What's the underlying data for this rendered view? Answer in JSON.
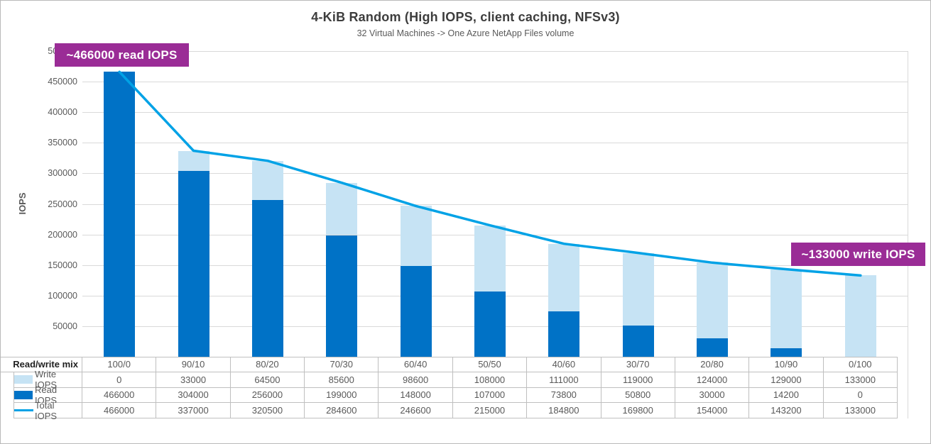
{
  "chart": {
    "title": "4-KiB Random (High IOPS, client caching, NFSv3)",
    "subtitle": "32 Virtual Machines -> One Azure NetApp Files volume",
    "y_axis_title": "IOPS",
    "annotations": [
      {
        "id": "read-peak",
        "text": "~466000 read IOPS"
      },
      {
        "id": "write-peak",
        "text": "~133000 write IOPS"
      }
    ]
  },
  "chart_data": {
    "type": "stacked-bar-with-line",
    "title": "4-KiB Random (High IOPS, client caching, NFSv3)",
    "subtitle": "32 Virtual Machines -> One Azure NetApp Files volume",
    "xlabel": "Read/write mix",
    "ylabel": "IOPS",
    "ylim": [
      0,
      500000
    ],
    "y_ticks": [
      50000,
      100000,
      150000,
      200000,
      250000,
      300000,
      350000,
      400000,
      450000,
      500000
    ],
    "grid": true,
    "legend_position": "table-rows",
    "categories": [
      "100/0",
      "90/10",
      "80/20",
      "70/30",
      "60/40",
      "50/50",
      "40/60",
      "30/70",
      "20/80",
      "10/90",
      "0/100"
    ],
    "series": [
      {
        "name": "Write IOPS",
        "role": "write",
        "render": "bar-stack-top",
        "color": "#c6e3f4",
        "values": [
          0,
          33000,
          64500,
          85600,
          98600,
          108000,
          111000,
          119000,
          124000,
          129000,
          133000
        ]
      },
      {
        "name": "Read IOPS",
        "role": "read",
        "render": "bar-stack-bottom",
        "color": "#0072c6",
        "values": [
          466000,
          304000,
          256000,
          199000,
          148000,
          107000,
          73800,
          50800,
          30000,
          14200,
          0
        ]
      },
      {
        "name": "Total IOPS",
        "role": "total",
        "render": "line",
        "color": "#00a2e6",
        "values": [
          466000,
          337000,
          320500,
          284600,
          246600,
          215000,
          184800,
          169800,
          154000,
          143200,
          133000
        ]
      }
    ]
  },
  "table": {
    "header_label": "Read/write mix"
  },
  "colors": {
    "read_bar": "#0072c6",
    "write_bar": "#c6e3f4",
    "total_line": "#00a2e6",
    "annotation_bg": "#9a2c96",
    "gridline": "#d9d9d9",
    "table_border": "#bfbfbf",
    "text_grey": "#595959",
    "title_grey": "#3d3d3d"
  }
}
